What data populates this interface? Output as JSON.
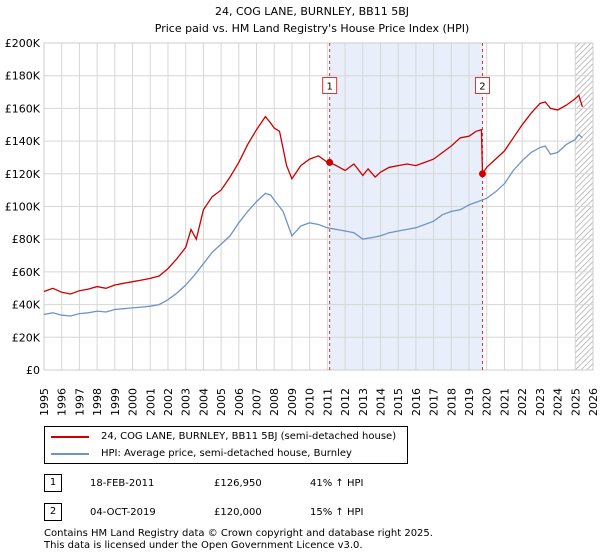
{
  "chart_data": {
    "type": "line",
    "title": "24, COG LANE, BURNLEY, BB11 5BJ",
    "subtitle": "Price paid vs. HM Land Registry's House Price Index (HPI)",
    "xlim": [
      1995,
      2026
    ],
    "ylim": [
      0,
      200000
    ],
    "x_ticks": [
      "1995",
      "1996",
      "1997",
      "1998",
      "1999",
      "2000",
      "2001",
      "2002",
      "2003",
      "2004",
      "2005",
      "2006",
      "2007",
      "2008",
      "2009",
      "2010",
      "2011",
      "2012",
      "2013",
      "2014",
      "2015",
      "2016",
      "2017",
      "2018",
      "2019",
      "2020",
      "2021",
      "2022",
      "2023",
      "2024",
      "2025",
      "2026"
    ],
    "y_ticks": [
      {
        "value": 0,
        "label": "£0"
      },
      {
        "value": 20000,
        "label": "£20K"
      },
      {
        "value": 40000,
        "label": "£40K"
      },
      {
        "value": 60000,
        "label": "£60K"
      },
      {
        "value": 80000,
        "label": "£80K"
      },
      {
        "value": 100000,
        "label": "£100K"
      },
      {
        "value": 120000,
        "label": "£120K"
      },
      {
        "value": 140000,
        "label": "£140K"
      },
      {
        "value": 160000,
        "label": "£160K"
      },
      {
        "value": 180000,
        "label": "£180K"
      },
      {
        "value": 200000,
        "label": "£200K"
      }
    ],
    "grid": true,
    "shaded_region": {
      "from": 2011.13,
      "to": 2019.76
    },
    "forecast_region_start": 2025.0,
    "series": [
      {
        "name": "24, COG LANE, BURNLEY, BB11 5BJ (semi-detached house)",
        "color": "#cc0000",
        "points": [
          [
            1995.0,
            48000
          ],
          [
            1995.5,
            50000
          ],
          [
            1996.0,
            47500
          ],
          [
            1996.5,
            46500
          ],
          [
            1997.0,
            48500
          ],
          [
            1997.5,
            49500
          ],
          [
            1998.0,
            51000
          ],
          [
            1998.5,
            50000
          ],
          [
            1999.0,
            52000
          ],
          [
            1999.5,
            53000
          ],
          [
            2000.0,
            54000
          ],
          [
            2000.5,
            55000
          ],
          [
            2001.0,
            56000
          ],
          [
            2001.5,
            57500
          ],
          [
            2002.0,
            62000
          ],
          [
            2002.5,
            68000
          ],
          [
            2003.0,
            75000
          ],
          [
            2003.3,
            86000
          ],
          [
            2003.6,
            80000
          ],
          [
            2004.0,
            98000
          ],
          [
            2004.5,
            106000
          ],
          [
            2005.0,
            110000
          ],
          [
            2005.5,
            118000
          ],
          [
            2006.0,
            127000
          ],
          [
            2006.5,
            138000
          ],
          [
            2007.0,
            147000
          ],
          [
            2007.5,
            155000
          ],
          [
            2007.8,
            151000
          ],
          [
            2008.0,
            148000
          ],
          [
            2008.3,
            146000
          ],
          [
            2008.7,
            125000
          ],
          [
            2009.0,
            117000
          ],
          [
            2009.5,
            125000
          ],
          [
            2010.0,
            129000
          ],
          [
            2010.5,
            131000
          ],
          [
            2011.0,
            127000
          ],
          [
            2011.13,
            126950
          ],
          [
            2011.5,
            125000
          ],
          [
            2012.0,
            122000
          ],
          [
            2012.5,
            126000
          ],
          [
            2013.0,
            119000
          ],
          [
            2013.3,
            123000
          ],
          [
            2013.7,
            118000
          ],
          [
            2014.0,
            121000
          ],
          [
            2014.5,
            124000
          ],
          [
            2015.0,
            125000
          ],
          [
            2015.5,
            126000
          ],
          [
            2016.0,
            125000
          ],
          [
            2016.5,
            127000
          ],
          [
            2017.0,
            129000
          ],
          [
            2017.5,
            133000
          ],
          [
            2018.0,
            137000
          ],
          [
            2018.5,
            142000
          ],
          [
            2019.0,
            143000
          ],
          [
            2019.4,
            146000
          ],
          [
            2019.7,
            147000
          ],
          [
            2019.76,
            120000
          ],
          [
            2020.0,
            124000
          ],
          [
            2020.5,
            129000
          ],
          [
            2021.0,
            134000
          ],
          [
            2021.5,
            142000
          ],
          [
            2022.0,
            150000
          ],
          [
            2022.5,
            157000
          ],
          [
            2023.0,
            163000
          ],
          [
            2023.3,
            164000
          ],
          [
            2023.6,
            160000
          ],
          [
            2024.0,
            159000
          ],
          [
            2024.5,
            162000
          ],
          [
            2025.0,
            166000
          ],
          [
            2025.2,
            168000
          ],
          [
            2025.4,
            161000
          ]
        ]
      },
      {
        "name": "HPI: Average price, semi-detached house, Burnley",
        "color": "#6e94c6",
        "points": [
          [
            1995.0,
            34000
          ],
          [
            1995.5,
            35000
          ],
          [
            1996.0,
            33500
          ],
          [
            1996.5,
            33000
          ],
          [
            1997.0,
            34500
          ],
          [
            1997.5,
            35000
          ],
          [
            1998.0,
            36000
          ],
          [
            1998.5,
            35500
          ],
          [
            1999.0,
            37000
          ],
          [
            1999.5,
            37500
          ],
          [
            2000.0,
            38000
          ],
          [
            2000.5,
            38500
          ],
          [
            2001.0,
            39000
          ],
          [
            2001.5,
            40000
          ],
          [
            2002.0,
            43000
          ],
          [
            2002.5,
            47000
          ],
          [
            2003.0,
            52000
          ],
          [
            2003.5,
            58000
          ],
          [
            2004.0,
            65000
          ],
          [
            2004.5,
            72000
          ],
          [
            2005.0,
            77000
          ],
          [
            2005.5,
            82000
          ],
          [
            2006.0,
            90000
          ],
          [
            2006.5,
            97000
          ],
          [
            2007.0,
            103000
          ],
          [
            2007.5,
            108000
          ],
          [
            2007.8,
            107000
          ],
          [
            2008.0,
            104000
          ],
          [
            2008.5,
            97000
          ],
          [
            2009.0,
            82000
          ],
          [
            2009.5,
            88000
          ],
          [
            2010.0,
            90000
          ],
          [
            2010.5,
            89000
          ],
          [
            2011.0,
            87000
          ],
          [
            2011.5,
            86000
          ],
          [
            2012.0,
            85000
          ],
          [
            2012.5,
            84000
          ],
          [
            2013.0,
            80000
          ],
          [
            2013.5,
            81000
          ],
          [
            2014.0,
            82000
          ],
          [
            2014.5,
            84000
          ],
          [
            2015.0,
            85000
          ],
          [
            2015.5,
            86000
          ],
          [
            2016.0,
            87000
          ],
          [
            2016.5,
            89000
          ],
          [
            2017.0,
            91000
          ],
          [
            2017.5,
            95000
          ],
          [
            2018.0,
            97000
          ],
          [
            2018.5,
            98000
          ],
          [
            2019.0,
            101000
          ],
          [
            2019.5,
            103000
          ],
          [
            2020.0,
            105000
          ],
          [
            2020.5,
            109000
          ],
          [
            2021.0,
            114000
          ],
          [
            2021.5,
            122000
          ],
          [
            2022.0,
            128000
          ],
          [
            2022.5,
            133000
          ],
          [
            2023.0,
            136000
          ],
          [
            2023.3,
            137000
          ],
          [
            2023.6,
            132000
          ],
          [
            2024.0,
            133000
          ],
          [
            2024.5,
            138000
          ],
          [
            2025.0,
            141000
          ],
          [
            2025.2,
            144000
          ],
          [
            2025.4,
            142000
          ]
        ]
      }
    ],
    "markers": [
      {
        "label": "1",
        "x": 2011.13,
        "y": 126950,
        "box_value": 174000
      },
      {
        "label": "2",
        "x": 2019.76,
        "y": 120000,
        "box_value": 174000
      }
    ]
  },
  "legend": {
    "items": [
      {
        "label": "24, COG LANE, BURNLEY, BB11 5BJ (semi-detached house)",
        "color": "#cc0000"
      },
      {
        "label": "HPI: Average price, semi-detached house, Burnley",
        "color": "#6e94c6"
      }
    ]
  },
  "sales": [
    {
      "num": "1",
      "date": "18-FEB-2011",
      "price": "£126,950",
      "hpi": "41% ↑ HPI"
    },
    {
      "num": "2",
      "date": "04-OCT-2019",
      "price": "£120,000",
      "hpi": "15% ↑ HPI"
    }
  ],
  "footer": {
    "line1": "Contains HM Land Registry data © Crown copyright and database right 2025.",
    "line2": "This data is licensed under the Open Government Licence v3.0."
  }
}
